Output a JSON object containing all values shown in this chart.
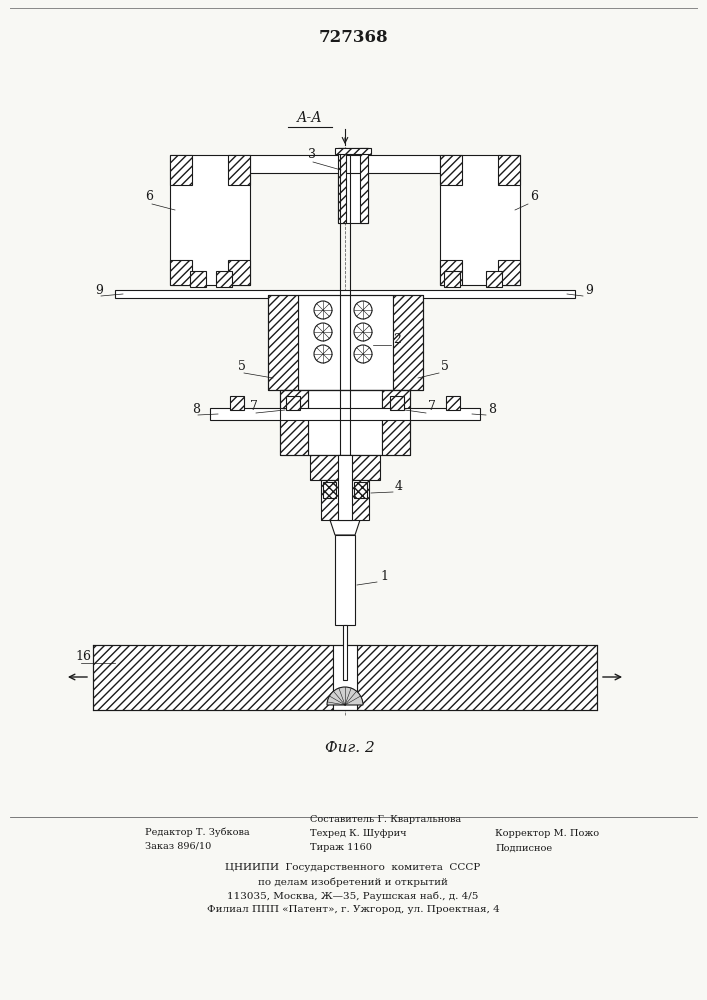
{
  "title": "727368",
  "fig_label": "Фиг. 2",
  "section_label": "А-А",
  "footer_left_line1": "Редактор Т. Зубкова",
  "footer_left_line2": "Заказ 896/10",
  "footer_center_line1": "Составитель Г. Квартальнова",
  "footer_center_line2": "Техред К. Шуфрич",
  "footer_center_line3": "Тираж 1160",
  "footer_right_line1": "Корректор М. Пожо",
  "footer_right_line2": "Подписное",
  "footer_org_line1": "ЦНИИПИ  Государственного  комитета  СССР",
  "footer_org_line2": "по делам изобретений и открытий",
  "footer_org_line3": "113035, Москва, Ж—35, Раушская наб., д. 4/5",
  "footer_org_line4": "Филиал ППП «Патент», г. Ужгород, ул. Проектная, 4",
  "bg_color": "#f8f8f4",
  "line_color": "#1a1a1a"
}
